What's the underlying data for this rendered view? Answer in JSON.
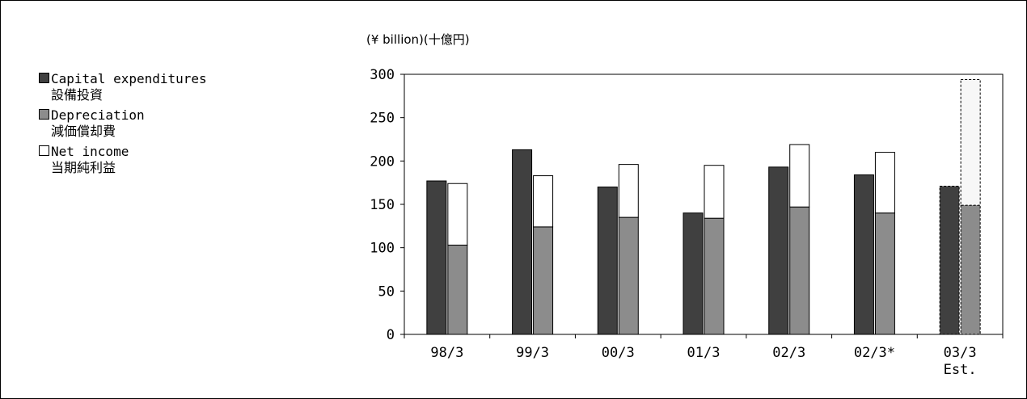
{
  "chart_data": {
    "type": "bar",
    "unit_label": "(¥ billion)(十億円)",
    "categories": [
      "98/3",
      "99/3",
      "00/3",
      "01/3",
      "02/3",
      "02/3*",
      "03/3"
    ],
    "category_sublabels": [
      "",
      "",
      "",
      "",
      "",
      "",
      "Est."
    ],
    "ylim": [
      0,
      300
    ],
    "yticks": [
      "0",
      "50",
      "100",
      "150",
      "200",
      "250",
      "300"
    ],
    "estimate_index": 6,
    "series": [
      {
        "name": "Capital expenditures",
        "name_ja": "設備投資",
        "color": "#404040",
        "values": [
          177,
          213,
          170,
          140,
          193,
          184,
          171
        ]
      },
      {
        "name": "Depreciation",
        "name_ja": "減価償却費",
        "color": "#8c8c8c",
        "values": [
          103,
          124,
          135,
          134,
          147,
          140,
          149
        ]
      },
      {
        "name": "Net income",
        "name_ja": "当期純利益",
        "color": "#ffffff",
        "values": [
          71,
          59,
          61,
          61,
          72,
          70,
          145
        ]
      }
    ],
    "legend_position": "left",
    "grid": false
  }
}
